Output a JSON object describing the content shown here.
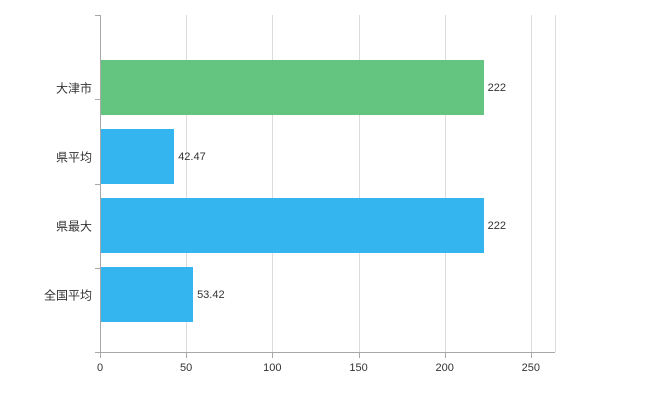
{
  "chart_data": {
    "type": "bar",
    "orientation": "horizontal",
    "title": "",
    "xlabel": "",
    "ylabel": "",
    "categories": [
      "大津市",
      "県平均",
      "県最大",
      "全国平均"
    ],
    "values": [
      222,
      42.47,
      222,
      53.42
    ],
    "value_labels": [
      "222",
      "42.47",
      "222",
      "53.42"
    ],
    "bar_colors": [
      "#63c580",
      "#35b5f0",
      "#35b5f0",
      "#35b5f0"
    ],
    "xlim": [
      0,
      264
    ],
    "x_ticks": [
      0,
      50,
      100,
      150,
      200,
      250
    ],
    "grid": true,
    "legend": "none"
  },
  "colors": {
    "green_bar": "#63c580",
    "blue_bar": "#35b5f0",
    "grid": "#dcdcdc",
    "axis": "#a8a8a8",
    "text": "#333333",
    "background": "#ffffff"
  }
}
